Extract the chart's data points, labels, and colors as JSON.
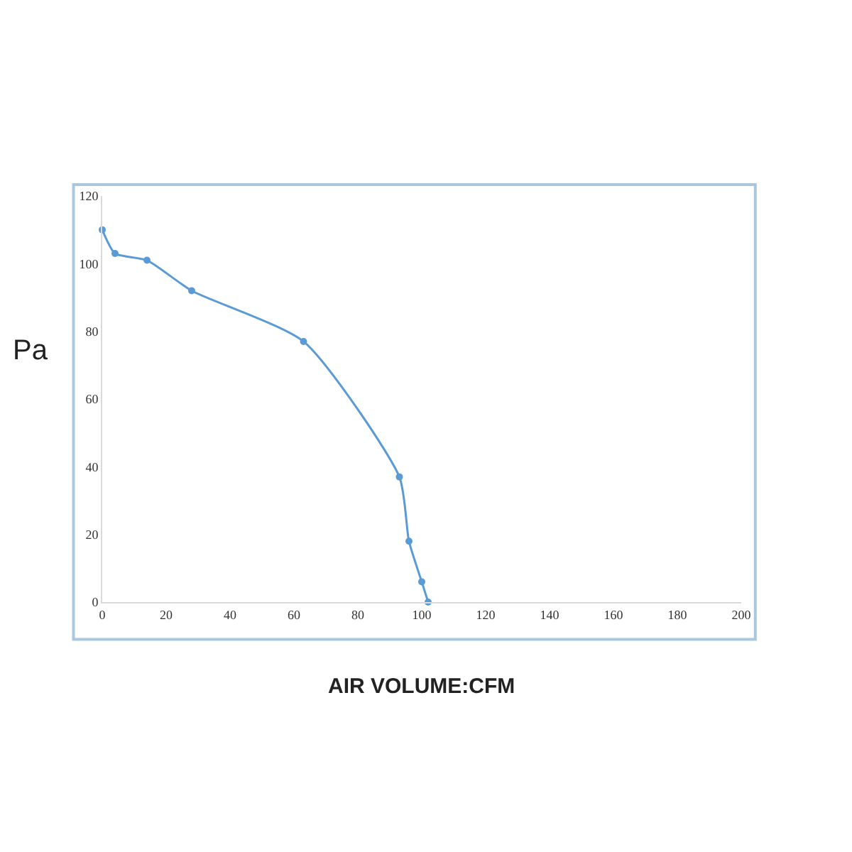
{
  "chart_data": {
    "type": "line",
    "xlabel": "AIR VOLUME:CFM",
    "ylabel": "Pa",
    "x": [
      0,
      4,
      14,
      28,
      63,
      93,
      96,
      100,
      102
    ],
    "series": [
      {
        "color": "#5b9bd5",
        "values": [
          110,
          103,
          101,
          92,
          77,
          37,
          18,
          6,
          0
        ]
      }
    ],
    "xlim": [
      0,
      200
    ],
    "xticks": [
      0,
      20,
      40,
      60,
      80,
      100,
      120,
      140,
      160,
      180,
      200
    ],
    "ylim": [
      0,
      120
    ],
    "yticks": [
      0,
      20,
      40,
      60,
      80,
      100,
      120
    ],
    "marker": "circle",
    "line_style": "solid",
    "legend": false
  }
}
